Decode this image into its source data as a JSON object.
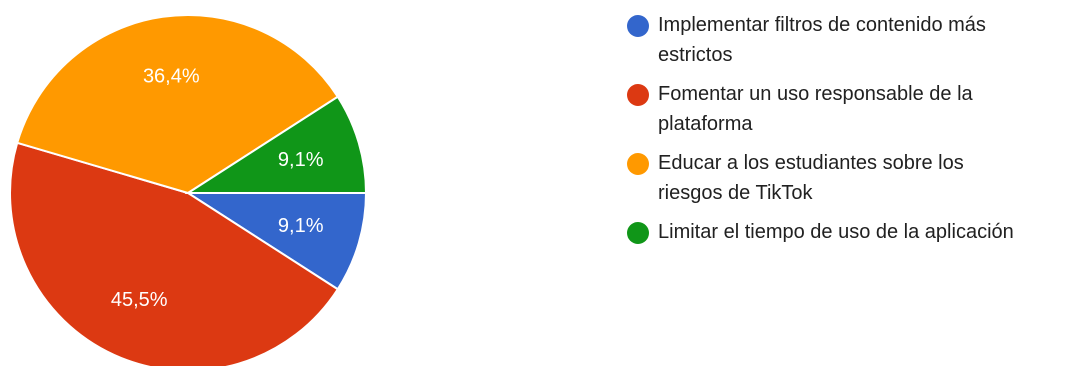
{
  "chart_data": {
    "type": "pie",
    "categories": [
      "Implementar filtros de contenido más\nestrictos",
      "Fomentar un uso responsable de la\nplataforma",
      "Educar a los estudiantes sobre los\nriesgos de TikTok",
      "Limitar el tiempo de uso de la aplicación"
    ],
    "values": [
      9.1,
      45.5,
      36.4,
      9.1
    ],
    "value_labels": [
      "9,1%",
      "45,5%",
      "36,4%",
      "9,1%"
    ],
    "colors": [
      "#3366cc",
      "#dc3912",
      "#ff9900",
      "#109618"
    ],
    "start_direction": "3 o'clock",
    "direction": "clockwise",
    "legend_position": "right"
  }
}
